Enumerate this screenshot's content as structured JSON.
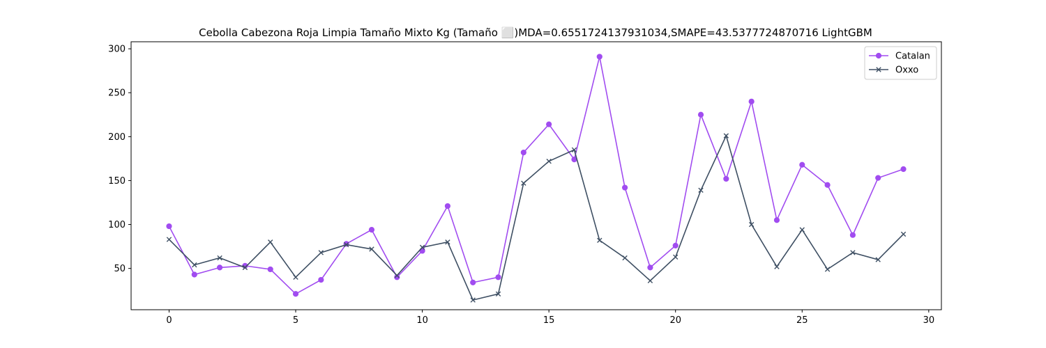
{
  "chart_data": {
    "type": "line",
    "title": "Cebolla Cabezona Roja Limpia Tamaño Mixto Kg (Tamaño ⬜)MDA=0.6551724137931034,SMAPE=43.5377724870716 LightGBM",
    "xlabel": "",
    "ylabel": "",
    "xlim": [
      -1.5,
      30.5
    ],
    "ylim": [
      3,
      308
    ],
    "xticks": [
      0,
      5,
      10,
      15,
      20,
      25,
      30
    ],
    "yticks": [
      50,
      100,
      150,
      200,
      250,
      300
    ],
    "grid": false,
    "legend_position": "top-right",
    "x": [
      0,
      1,
      2,
      3,
      4,
      5,
      6,
      7,
      8,
      9,
      10,
      11,
      12,
      13,
      14,
      15,
      16,
      17,
      18,
      19,
      20,
      21,
      22,
      23,
      24,
      25,
      26,
      27,
      28,
      29
    ],
    "series": [
      {
        "name": "Catalan",
        "color": "#a14cf0",
        "marker": "circle",
        "values": [
          98,
          43,
          51,
          53,
          49,
          21,
          37,
          78,
          94,
          40,
          70,
          121,
          34,
          40,
          182,
          214,
          174,
          291,
          142,
          51,
          76,
          225,
          152,
          240,
          105,
          168,
          145,
          88,
          153,
          163
        ]
      },
      {
        "name": "Oxxo",
        "color": "#3e4f63",
        "marker": "x",
        "values": [
          83,
          54,
          62,
          51,
          80,
          40,
          68,
          77,
          72,
          42,
          74,
          80,
          14,
          21,
          147,
          172,
          185,
          82,
          62,
          36,
          63,
          139,
          201,
          100,
          52,
          94,
          49,
          68,
          60,
          89
        ]
      }
    ]
  }
}
